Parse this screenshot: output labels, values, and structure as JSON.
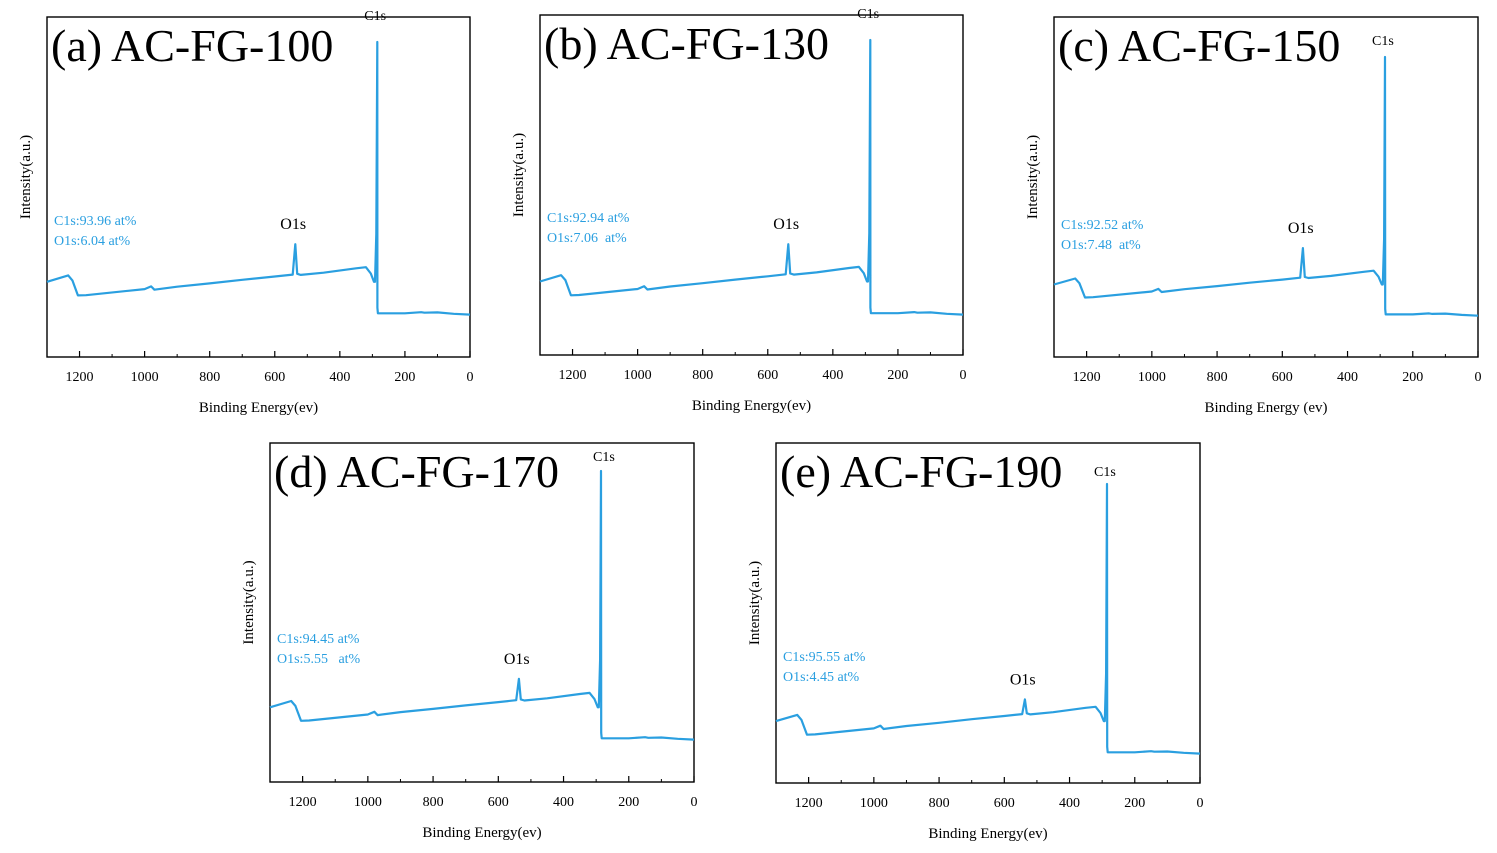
{
  "chart_data": [
    {
      "type": "line",
      "title": "(a) AC-FG-100",
      "xlabel": "Binding Energy(ev)",
      "ylabel": "Intensity(a.u.)",
      "xlim": [
        1300,
        0
      ],
      "x_reversed": true,
      "xticks": [
        "1200",
        "1000",
        "800",
        "600",
        "400",
        "200",
        "0"
      ],
      "y_ticks_shown": false,
      "series": [
        {
          "x": [
            1300,
            1235,
            1222,
            1205,
            1180,
            1000,
            980,
            970,
            900,
            800,
            700,
            600,
            545,
            537,
            531,
            520,
            450,
            350,
            320,
            305,
            295,
            292,
            288,
            285,
            284.5,
            283,
            275,
            200,
            150,
            140,
            100,
            50,
            0
          ],
          "y": [
            0.125,
            0.148,
            0.13,
            0.075,
            0.076,
            0.098,
            0.108,
            0.096,
            0.107,
            0.119,
            0.132,
            0.144,
            0.151,
            0.262,
            0.154,
            0.15,
            0.158,
            0.174,
            0.178,
            0.155,
            0.125,
            0.125,
            0.3,
            1.0,
            0.03,
            0.01,
            0.01,
            0.01,
            0.014,
            0.012,
            0.013,
            0.008,
            0.005
          ]
        }
      ],
      "annotations": {
        "c1s_label": "C1s",
        "o1s_label": "O1s",
        "c1s_at": "C1s:93.96 at%",
        "o1s_at": "O1s:6.04 at%"
      },
      "color": "#2a9fe0"
    },
    {
      "type": "line",
      "title": "(b) AC-FG-130",
      "xlabel": "Binding Energy(ev)",
      "ylabel": "Intensity(a.u.)",
      "xlim": [
        1300,
        0
      ],
      "x_reversed": true,
      "xticks": [
        "1200",
        "1000",
        "800",
        "600",
        "400",
        "200",
        "0"
      ],
      "y_ticks_shown": false,
      "series": [
        {
          "x": [
            1300,
            1235,
            1222,
            1205,
            1180,
            1000,
            980,
            970,
            900,
            800,
            700,
            600,
            545,
            537,
            531,
            520,
            450,
            350,
            320,
            305,
            295,
            292,
            288,
            285,
            284.5,
            283,
            275,
            200,
            150,
            140,
            100,
            50,
            0
          ],
          "y": [
            0.125,
            0.148,
            0.13,
            0.075,
            0.076,
            0.098,
            0.108,
            0.096,
            0.107,
            0.119,
            0.132,
            0.144,
            0.151,
            0.26,
            0.154,
            0.15,
            0.158,
            0.174,
            0.178,
            0.155,
            0.125,
            0.125,
            0.3,
            1.0,
            0.03,
            0.01,
            0.01,
            0.01,
            0.014,
            0.012,
            0.013,
            0.008,
            0.005
          ]
        }
      ],
      "annotations": {
        "c1s_label": "C1s",
        "o1s_label": "O1s",
        "c1s_at": "C1s:92.94 at%",
        "o1s_at": "O1s:7.06  at%"
      },
      "color": "#2a9fe0"
    },
    {
      "type": "line",
      "title": "(c) AC-FG-150",
      "xlabel": "Binding Energy (ev)",
      "ylabel": "Intensity(a.u.)",
      "xlim": [
        1300,
        0
      ],
      "x_reversed": true,
      "xticks": [
        "1200",
        "1000",
        "800",
        "600",
        "400",
        "200",
        "0"
      ],
      "y_ticks_shown": false,
      "series": [
        {
          "x": [
            1300,
            1235,
            1222,
            1205,
            1180,
            1000,
            980,
            970,
            900,
            800,
            700,
            600,
            545,
            537,
            531,
            520,
            450,
            350,
            320,
            305,
            295,
            292,
            288,
            285,
            284.5,
            283,
            275,
            200,
            150,
            140,
            100,
            50,
            0
          ],
          "y": [
            0.125,
            0.148,
            0.13,
            0.075,
            0.076,
            0.098,
            0.108,
            0.096,
            0.107,
            0.119,
            0.132,
            0.144,
            0.151,
            0.265,
            0.154,
            0.15,
            0.158,
            0.174,
            0.178,
            0.155,
            0.125,
            0.125,
            0.3,
            1.0,
            0.03,
            0.01,
            0.01,
            0.01,
            0.014,
            0.012,
            0.013,
            0.008,
            0.005
          ]
        }
      ],
      "annotations": {
        "c1s_label": "C1s",
        "o1s_label": "O1s",
        "c1s_at": "C1s:92.52 at%",
        "o1s_at": "O1s:7.48  at%"
      },
      "color": "#2a9fe0"
    },
    {
      "type": "line",
      "title": "(d) AC-FG-170",
      "xlabel": "Binding Energy(ev)",
      "ylabel": "Intensity(a.u.)",
      "xlim": [
        1300,
        0
      ],
      "x_reversed": true,
      "xticks": [
        "1200",
        "1000",
        "800",
        "600",
        "400",
        "200",
        "0"
      ],
      "y_ticks_shown": false,
      "series": [
        {
          "x": [
            1300,
            1235,
            1222,
            1205,
            1180,
            1000,
            980,
            970,
            900,
            800,
            700,
            600,
            545,
            537,
            531,
            520,
            450,
            350,
            320,
            305,
            295,
            292,
            288,
            285,
            284.5,
            283,
            275,
            200,
            150,
            140,
            100,
            50,
            0
          ],
          "y": [
            0.125,
            0.148,
            0.13,
            0.075,
            0.076,
            0.098,
            0.108,
            0.096,
            0.107,
            0.119,
            0.132,
            0.144,
            0.151,
            0.23,
            0.154,
            0.15,
            0.158,
            0.174,
            0.178,
            0.155,
            0.125,
            0.125,
            0.3,
            1.0,
            0.03,
            0.01,
            0.01,
            0.01,
            0.014,
            0.012,
            0.013,
            0.008,
            0.005
          ]
        }
      ],
      "annotations": {
        "c1s_label": "C1s",
        "o1s_label": "O1s",
        "c1s_at": "C1s:94.45 at%",
        "o1s_at": "O1s:5.55   at%"
      },
      "color": "#2a9fe0"
    },
    {
      "type": "line",
      "title": "(e) AC-FG-190",
      "xlabel": "Binding Energy(ev)",
      "ylabel": "Intensity(a.u.)",
      "xlim": [
        1300,
        0
      ],
      "x_reversed": true,
      "xticks": [
        "1200",
        "1000",
        "800",
        "600",
        "400",
        "200",
        "0"
      ],
      "y_ticks_shown": false,
      "series": [
        {
          "x": [
            1300,
            1235,
            1222,
            1205,
            1180,
            1000,
            980,
            970,
            900,
            800,
            700,
            600,
            545,
            537,
            531,
            520,
            450,
            350,
            320,
            305,
            295,
            292,
            288,
            285,
            284.5,
            283,
            275,
            200,
            150,
            140,
            100,
            50,
            0
          ],
          "y": [
            0.125,
            0.148,
            0.13,
            0.075,
            0.076,
            0.098,
            0.108,
            0.096,
            0.107,
            0.119,
            0.132,
            0.144,
            0.151,
            0.205,
            0.154,
            0.15,
            0.158,
            0.174,
            0.178,
            0.155,
            0.125,
            0.125,
            0.3,
            1.0,
            0.03,
            0.01,
            0.01,
            0.01,
            0.014,
            0.012,
            0.013,
            0.008,
            0.005
          ]
        }
      ],
      "annotations": {
        "c1s_label": "C1s",
        "o1s_label": "O1s",
        "c1s_at": "C1s:95.55 at%",
        "o1s_at": "O1s:4.45 at%"
      },
      "color": "#2a9fe0"
    }
  ]
}
